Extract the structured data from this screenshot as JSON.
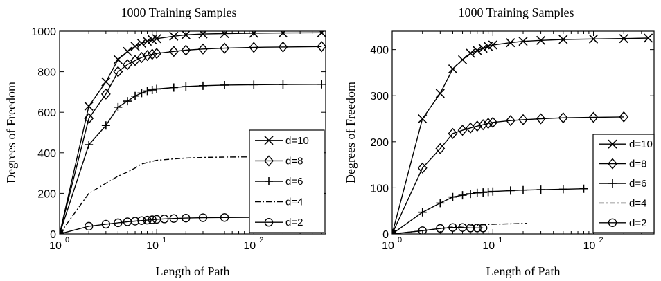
{
  "chart_data": [
    {
      "type": "line",
      "title": "1000 Training Samples",
      "xlabel": "Length of Path",
      "ylabel": "Degrees of Freedom",
      "xscale": "log",
      "xlim": [
        1,
        550
      ],
      "ylim": [
        0,
        1000
      ],
      "xticks": [
        {
          "base": "10",
          "exp": "0",
          "value": 1
        },
        {
          "base": "10",
          "exp": "1",
          "value": 10
        },
        {
          "base": "10",
          "exp": "2",
          "value": 100
        }
      ],
      "yticks": [
        "0",
        "200",
        "400",
        "600",
        "800",
        "1000"
      ],
      "grid": false,
      "legend_position": "bottom-right",
      "series": [
        {
          "name": "d=10",
          "marker": "x",
          "x": [
            1,
            2,
            3,
            4,
            5,
            6,
            7,
            8,
            9,
            10,
            15,
            20,
            30,
            50,
            100,
            200,
            500
          ],
          "y": [
            0,
            630,
            750,
            860,
            900,
            925,
            940,
            950,
            958,
            963,
            975,
            982,
            986,
            988,
            990,
            991,
            992
          ]
        },
        {
          "name": "d=8",
          "marker": "diamond",
          "x": [
            1,
            2,
            3,
            4,
            5,
            6,
            7,
            8,
            9,
            10,
            15,
            20,
            30,
            50,
            100,
            200,
            500
          ],
          "y": [
            0,
            570,
            690,
            800,
            835,
            855,
            870,
            880,
            886,
            890,
            900,
            906,
            912,
            916,
            920,
            922,
            924
          ]
        },
        {
          "name": "d=6",
          "marker": "plus",
          "x": [
            1,
            2,
            3,
            4,
            5,
            6,
            7,
            8,
            9,
            10,
            15,
            20,
            30,
            50,
            100,
            200,
            500
          ],
          "y": [
            0,
            440,
            535,
            625,
            655,
            680,
            695,
            705,
            710,
            715,
            722,
            727,
            731,
            734,
            736,
            737,
            738
          ]
        },
        {
          "name": "d=4",
          "marker": "none",
          "x": [
            1,
            2,
            3,
            4,
            5,
            6,
            7,
            8,
            10,
            15,
            20,
            30,
            50,
            100,
            200,
            450
          ],
          "y": [
            0,
            200,
            250,
            285,
            305,
            325,
            345,
            352,
            363,
            370,
            374,
            377,
            379,
            380,
            381,
            382
          ]
        },
        {
          "name": "d=2",
          "marker": "circle",
          "x": [
            1,
            2,
            3,
            4,
            5,
            6,
            7,
            8,
            9,
            10,
            12,
            15,
            20,
            30,
            50,
            100,
            200,
            400
          ],
          "y": [
            0,
            38,
            48,
            55,
            60,
            63,
            66,
            68,
            70,
            72,
            74,
            76,
            78,
            80,
            81,
            82,
            83,
            84
          ]
        }
      ]
    },
    {
      "type": "line",
      "title": "1000 Training Samples",
      "xlabel": "Length of Path",
      "ylabel": "Degrees of Freedom",
      "xscale": "log",
      "xlim": [
        1,
        400
      ],
      "ylim": [
        0,
        440
      ],
      "xticks": [
        {
          "base": "10",
          "exp": "0",
          "value": 1
        },
        {
          "base": "10",
          "exp": "1",
          "value": 10
        },
        {
          "base": "10",
          "exp": "2",
          "value": 100
        }
      ],
      "yticks": [
        "0",
        "100",
        "200",
        "300",
        "400"
      ],
      "grid": false,
      "legend_position": "bottom-right",
      "series": [
        {
          "name": "d=10",
          "marker": "x",
          "x": [
            1,
            2,
            3,
            4,
            5,
            6,
            7,
            8,
            9,
            10,
            15,
            20,
            30,
            50,
            100,
            200,
            350
          ],
          "y": [
            0,
            250,
            305,
            358,
            378,
            392,
            398,
            403,
            407,
            410,
            415,
            418,
            420,
            422,
            423,
            424,
            425
          ]
        },
        {
          "name": "d=8",
          "marker": "diamond",
          "x": [
            1,
            2,
            3,
            4,
            5,
            6,
            7,
            8,
            9,
            10,
            15,
            20,
            30,
            50,
            100,
            200
          ],
          "y": [
            0,
            143,
            185,
            218,
            225,
            230,
            234,
            237,
            240,
            242,
            246,
            248,
            250,
            252,
            253,
            254
          ]
        },
        {
          "name": "d=6",
          "marker": "plus",
          "x": [
            1,
            2,
            3,
            4,
            5,
            6,
            7,
            8,
            9,
            10,
            15,
            20,
            30,
            50,
            80
          ],
          "y": [
            0,
            47,
            67,
            80,
            84,
            87,
            89,
            90,
            91,
            92,
            94,
            95,
            96,
            97,
            98
          ]
        },
        {
          "name": "d=4",
          "marker": "none",
          "x": [
            1,
            2,
            3,
            4,
            5,
            6,
            7,
            8,
            10,
            15,
            22
          ],
          "y": [
            0,
            7,
            12,
            15,
            17,
            18,
            19,
            20,
            21,
            22,
            23
          ]
        },
        {
          "name": "d=2",
          "marker": "circle",
          "x": [
            1,
            2,
            3,
            4,
            5,
            6,
            7,
            8
          ],
          "y": [
            0,
            7,
            12,
            14,
            14,
            13,
            13,
            13
          ]
        }
      ]
    }
  ]
}
